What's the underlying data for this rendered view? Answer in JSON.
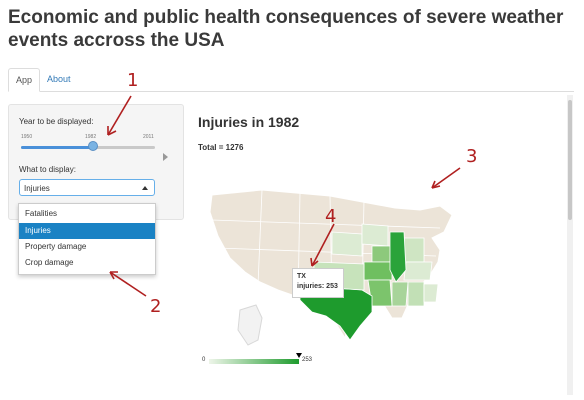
{
  "app": {
    "title": "Economic and public health consequences of severe weather events accross the USA"
  },
  "tabs": [
    {
      "label": "App",
      "active": true
    },
    {
      "label": "About",
      "active": false
    }
  ],
  "sidebar": {
    "year_label": "Year to be displayed:",
    "slider": {
      "min": "1950",
      "value": "1982",
      "max": "2011"
    },
    "display_label": "What to display:",
    "select_value": "Injuries",
    "options": [
      "Fatalities",
      "Injuries",
      "Property damage",
      "Crop damage"
    ],
    "selected_index": 1
  },
  "main": {
    "title": "Injuries in 1982",
    "total": "Total = 1276",
    "tooltip": {
      "state": "TX",
      "label": "injuries: 253"
    },
    "legend": {
      "min": "0",
      "max": "253"
    }
  },
  "annotations": [
    "1",
    "2",
    "3",
    "4"
  ],
  "colors": {
    "accent": "#337ab7",
    "select_highlight": "#1a82c4",
    "map_base": "#ece4d8",
    "map_high": "#1e9b2d",
    "annotation": "#b02020"
  }
}
